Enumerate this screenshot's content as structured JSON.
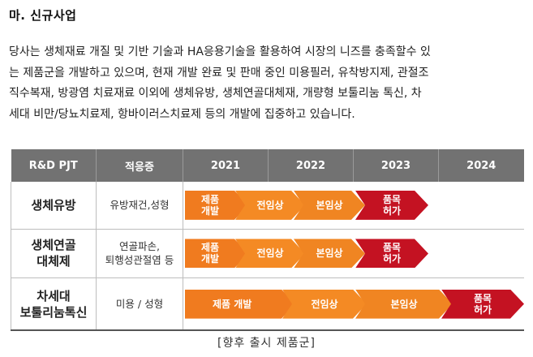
{
  "section": {
    "heading": "마. 신규사업"
  },
  "paragraph": [
    "당사는 생체재료 개질 및 기반 기술과 HA응용기술을 활용하여 시장의 니즈를 충족할수 있",
    "는 제품군을 개발하고 있으며, 현재 개발 완료 및 판매 중인 미용필러, 유착방지제, 관절조",
    "직수복재, 방광염 치료재료 이외에 생체유방, 생체연골대체재, 개량형 보툴리눔 톡신, 차",
    "세대 비만/당뇨치료제, 항바이러스치료제 등의 개발에 집중하고 있습니다."
  ],
  "table": {
    "headers": [
      "R&D PJT",
      "적응증",
      "2021",
      "2022",
      "2023",
      "2024"
    ],
    "rows": [
      {
        "product": "생체유방",
        "indication": "유방재건,성형",
        "stages": [
          "제품\n개발",
          "전임상",
          "본임상",
          "품목\n허가"
        ]
      },
      {
        "product": "생체연골\n대체제",
        "indication": "연골파손,\n퇴행성관절염 등",
        "stages": [
          "제품\n개발",
          "전임상",
          "본임상",
          "품목\n허가"
        ]
      },
      {
        "product": "차세대\n보툴리눔톡신",
        "indication": "미용 / 성형",
        "stages": [
          "제품 개발",
          "전임상",
          "본임상",
          "품목\n허가"
        ]
      }
    ]
  },
  "caption": "[향후 출시 제품군]",
  "colors": {
    "header_bg": "#727272",
    "stage_orange": "#f07b1f",
    "stage_red": "#c41222"
  }
}
